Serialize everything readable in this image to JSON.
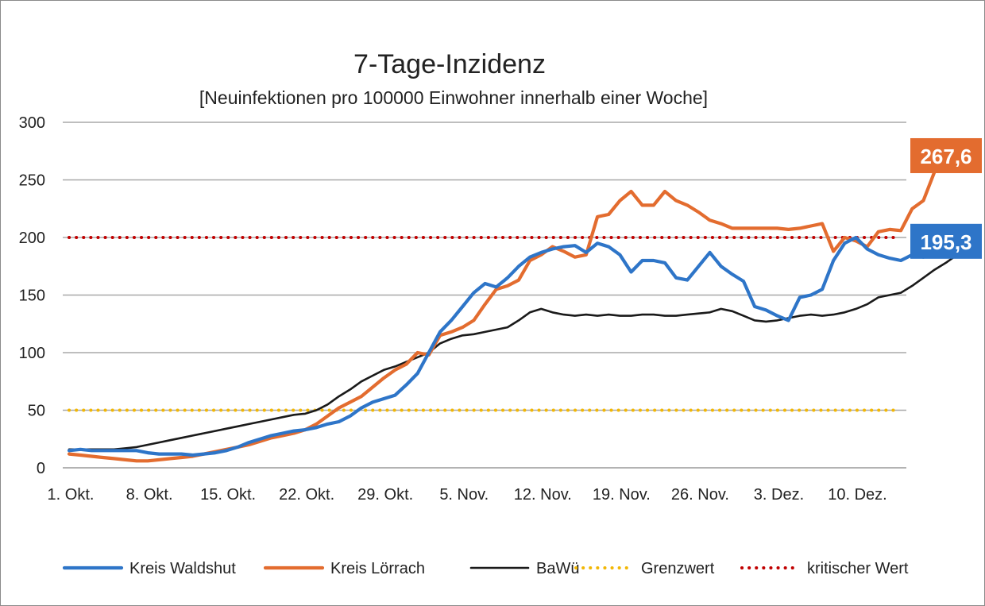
{
  "chart_data": {
    "type": "line",
    "title": "7-Tage-Inzidenz",
    "subtitle": "[Neuinfektionen pro 100000 Einwohner innerhalb einer Woche]",
    "xlabel": "",
    "ylabel": "",
    "ylim": [
      0,
      300
    ],
    "yticks": [
      0,
      50,
      100,
      150,
      200,
      250,
      300
    ],
    "x_start": "1. Okt.",
    "x_end": "15. Dez.",
    "xtick_labels": [
      "1. Okt.",
      "8. Okt.",
      "15. Okt.",
      "22. Okt.",
      "29. Okt.",
      "5. Nov.",
      "12. Nov.",
      "19. Nov.",
      "26. Nov.",
      "3. Dez.",
      "10. Dez."
    ],
    "grid": "horizontal",
    "legend_position": "bottom",
    "series": [
      {
        "name": "Kreis Waldshut",
        "color": "#2e75c8",
        "style": "solid",
        "end_label": "195,3",
        "values": [
          15,
          16,
          15,
          15,
          15,
          15,
          15,
          13,
          12,
          12,
          12,
          11,
          12,
          13,
          15,
          18,
          22,
          25,
          28,
          30,
          32,
          33,
          35,
          38,
          40,
          45,
          52,
          57,
          60,
          63,
          72,
          82,
          100,
          118,
          128,
          140,
          152,
          160,
          157,
          165,
          175,
          183,
          187,
          190,
          192,
          193,
          187,
          195,
          192,
          185,
          170,
          180,
          180,
          178,
          165,
          163,
          175,
          187,
          175,
          168,
          162,
          140,
          137,
          132,
          128,
          148,
          150,
          155,
          180,
          195,
          200,
          190,
          185,
          182,
          180,
          185,
          183,
          188,
          192,
          195.3
        ],
        "x_offset": 0
      },
      {
        "name": "Kreis Lörrach",
        "color": "#e36c2f",
        "style": "solid",
        "end_label": "267,6",
        "values": [
          12,
          11,
          10,
          9,
          8,
          7,
          6,
          6,
          7,
          8,
          9,
          10,
          12,
          14,
          16,
          18,
          20,
          23,
          26,
          28,
          30,
          33,
          38,
          45,
          52,
          57,
          62,
          70,
          78,
          85,
          90,
          100,
          98,
          115,
          118,
          122,
          128,
          142,
          155,
          158,
          163,
          180,
          185,
          192,
          188,
          183,
          185,
          218,
          220,
          232,
          240,
          228,
          228,
          240,
          232,
          228,
          222,
          215,
          212,
          208,
          208,
          208,
          208,
          208,
          207,
          208,
          210,
          212,
          188,
          200,
          197,
          192,
          205,
          207,
          206,
          225,
          232,
          257,
          260,
          267.6
        ],
        "x_offset": 0
      },
      {
        "name": "BaWü",
        "color": "#1a1a1a",
        "style": "solid",
        "values": [
          16,
          16,
          16,
          16,
          16,
          17,
          18,
          20,
          22,
          24,
          26,
          28,
          30,
          32,
          34,
          36,
          38,
          40,
          42,
          44,
          46,
          47,
          50,
          55,
          62,
          68,
          75,
          80,
          85,
          88,
          92,
          96,
          100,
          108,
          112,
          115,
          116,
          118,
          120,
          122,
          128,
          135,
          138,
          135,
          133,
          132,
          133,
          132,
          133,
          132,
          132,
          133,
          133,
          132,
          132,
          133,
          134,
          135,
          138,
          136,
          132,
          128,
          127,
          128,
          130,
          132,
          133,
          132,
          133,
          135,
          138,
          142,
          148,
          150,
          152,
          158,
          165,
          172,
          178,
          185
        ],
        "x_offset": 0
      },
      {
        "name": "Grenzwert",
        "color": "#f2b705",
        "style": "dotted",
        "values": [
          50,
          50
        ],
        "span": "full"
      },
      {
        "name": "kritischer Wert",
        "color": "#c00000",
        "style": "dotted",
        "values": [
          200,
          200
        ],
        "span": "full"
      }
    ]
  }
}
